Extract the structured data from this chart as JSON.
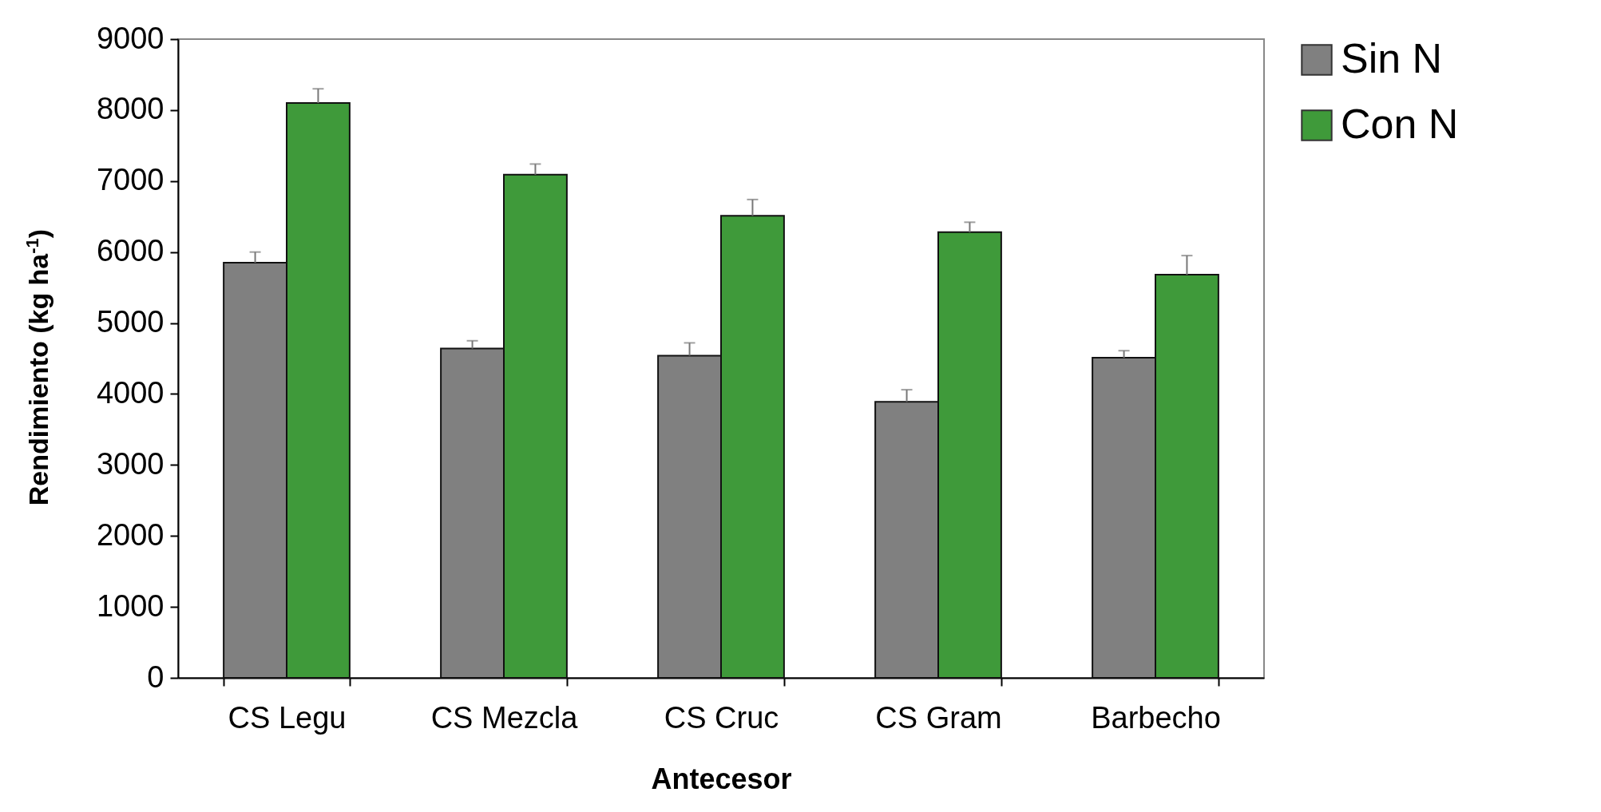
{
  "chart_data": {
    "type": "bar",
    "xlabel": "Antecesor",
    "ylabel": "Rendimiento (kg ha$^{-1}$)",
    "categories": [
      "CS Legu",
      "CS Mezcla",
      "CS Cruc",
      "CS Gram",
      "Barbecho"
    ],
    "series": [
      {
        "name": "Sin N",
        "color": "#808080",
        "values": [
          5850,
          4640,
          4540,
          3890,
          4510
        ],
        "errors": [
          150,
          110,
          180,
          170,
          100
        ]
      },
      {
        "name": "Con N",
        "color": "#3f9a3a",
        "values": [
          8100,
          7090,
          6510,
          6280,
          5680
        ],
        "errors": [
          200,
          150,
          230,
          140,
          270
        ]
      }
    ],
    "ylim": [
      0,
      9000
    ],
    "yticks": [
      0,
      1000,
      2000,
      3000,
      4000,
      5000,
      6000,
      7000,
      8000,
      9000
    ],
    "grid": false,
    "legend": "right"
  }
}
